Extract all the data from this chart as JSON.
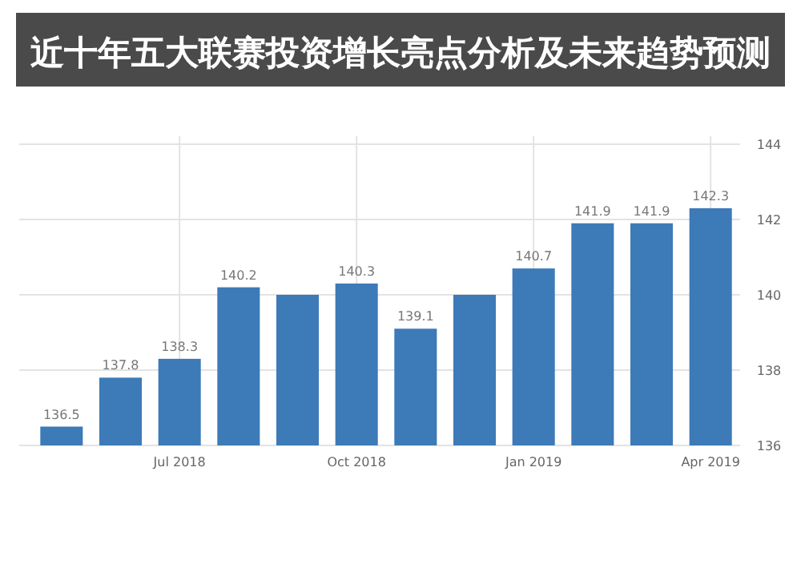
{
  "chart_data": {
    "type": "bar",
    "title": "近十年五大联赛投资增长亮点分析及未来趋势预测",
    "categories": [
      null,
      null,
      "Jul 2018",
      null,
      null,
      "Oct 2018",
      null,
      null,
      "Jan 2019",
      null,
      null,
      "Apr 2019"
    ],
    "values": [
      136.5,
      137.8,
      138.3,
      140.2,
      140.0,
      140.3,
      139.1,
      140.0,
      140.7,
      141.9,
      141.9,
      142.3
    ],
    "value_labels": [
      "136.5",
      "137.8",
      "138.3",
      "140.2",
      null,
      "140.3",
      "139.1",
      null,
      "140.7",
      "141.9",
      "141.9",
      "142.3"
    ],
    "color": "#3d7ab8",
    "ylim": [
      136,
      144
    ],
    "yticks": [
      136,
      138,
      140,
      142,
      144
    ],
    "grid": true
  }
}
